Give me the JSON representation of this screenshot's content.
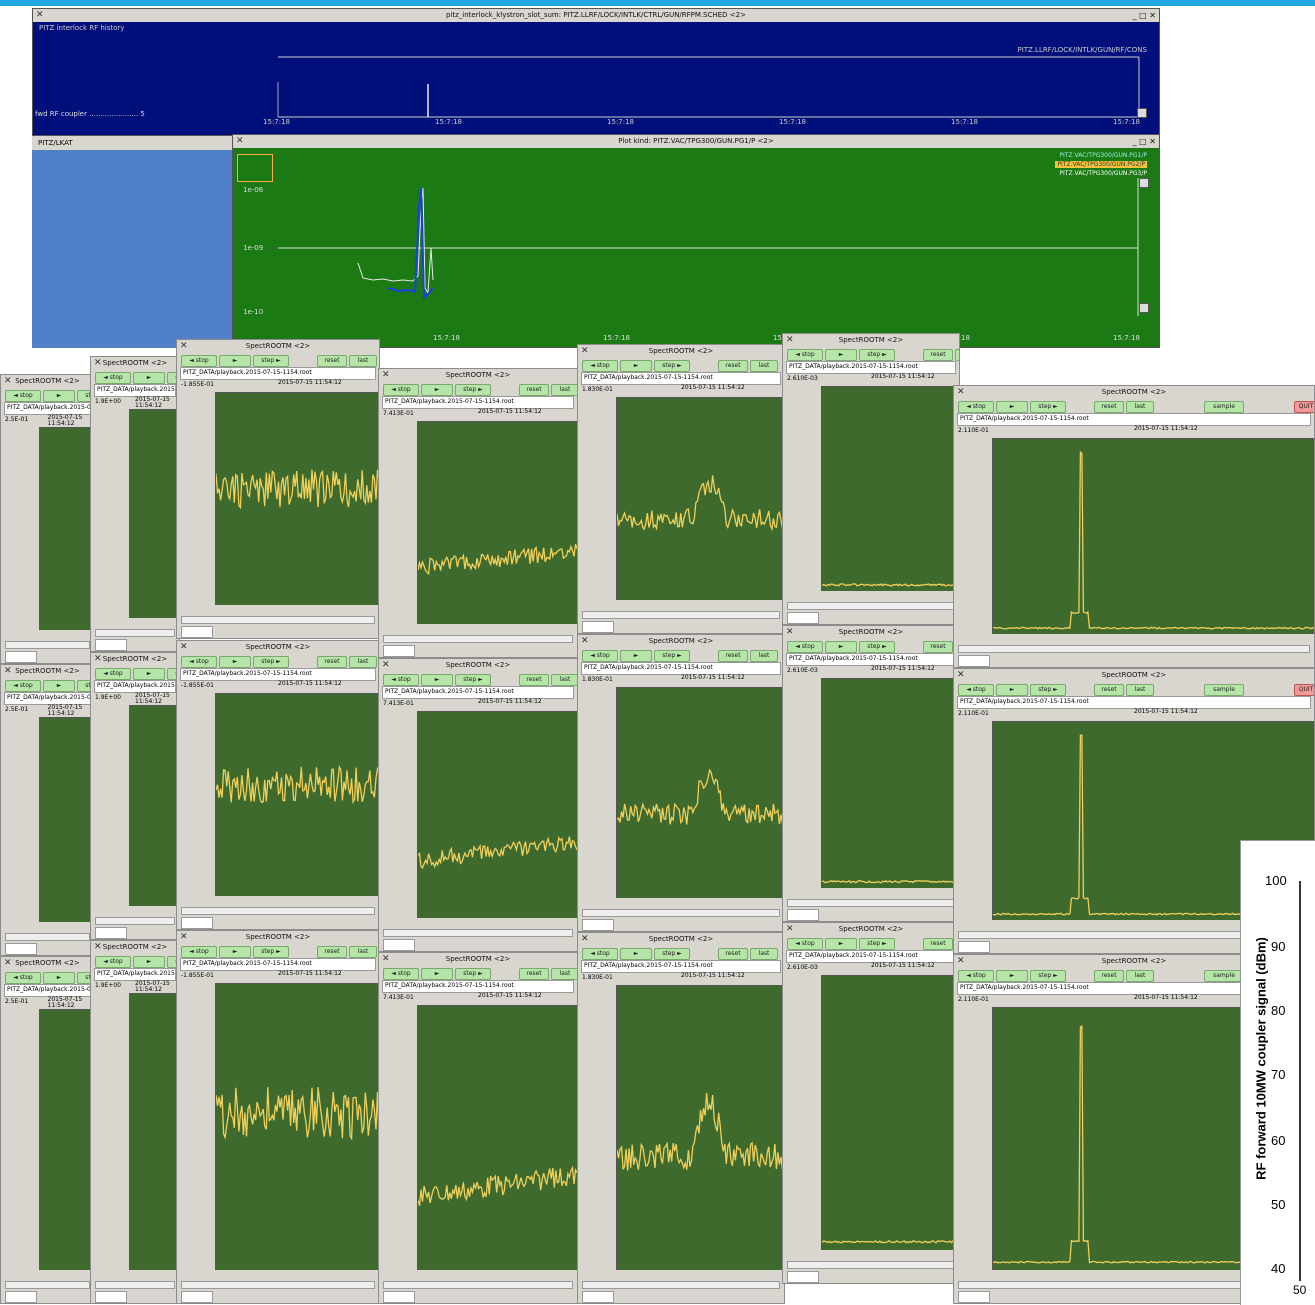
{
  "top_window": {
    "title": "pitz_interlock_klystron_slot_sum: PITZ.LLRF/LOCK/INTLK/CTRL/GUN/RFPM.SCHED <2>",
    "heading": "PITZ interlock RF history",
    "subtitle": "PITZ.LLRF/LOCK/INTLK/GUN/RF/CONS",
    "row_label": "fwd RF coupler ...................... 5",
    "time_labels": [
      "15:7:18",
      "15:7:18",
      "15:7:18",
      "15:7:18",
      "15:7:18",
      "15:7:18"
    ],
    "left_label": "PITZ/LKAT"
  },
  "green_window": {
    "title": "Plot kind: PITZ.VAC/TPG300/GUN.PG1/P <2>",
    "legend_top": "PITZ.VAC/TPG300/GUN.PG1/P",
    "legend_yellow": "PITZ.VAC/TPG300/GUN.PG2/P",
    "legend_white": "PITZ.VAC/TPG300/GUN.PG3/P",
    "y_labels": [
      "1e-06",
      "1e-09",
      "1e-10"
    ],
    "time_labels": [
      "15:7:18",
      "15:7:18",
      "15:7:18",
      "15:7:18",
      "15:7:18"
    ]
  },
  "spec_common": {
    "title": "SpectROOTM <2>",
    "stop_label": "◄ stop",
    "play_label": "►",
    "step_label": "step ►",
    "reset_label": "reset",
    "last_label": "last",
    "sample_label": "sample",
    "quit_label": "QUIT",
    "file_prefix": "PITZ_DATA/playback.2015-07-15-1154.root",
    "date_line1": "2015-07-15",
    "date_line2": "11:54:12"
  },
  "spec_windows": [
    {
      "id": "w1",
      "ylabel": "2.5E-01",
      "trace": "flat"
    },
    {
      "id": "w2",
      "ylabel": "1.9E+00",
      "trace": "flat"
    },
    {
      "id": "w3",
      "ylabel": "-1.855E-01",
      "trace": "noise"
    },
    {
      "id": "w4",
      "ylabel": "7.413E-01",
      "trace": "decay"
    },
    {
      "id": "w5",
      "ylabel": "1.830E-01",
      "trace": "bump"
    },
    {
      "id": "w6",
      "ylabel": "2.610E-03",
      "trace": "flatlow"
    },
    {
      "id": "w7",
      "ylabel": "2.110E-01",
      "trace": "pulse"
    }
  ],
  "rf_chart": {
    "ylabel": "RF forward 10MW coupler signal (dBm)",
    "y_ticks": [
      "100",
      "90",
      "80",
      "70",
      "60",
      "50",
      "40"
    ],
    "x_first_tick": "50"
  }
}
